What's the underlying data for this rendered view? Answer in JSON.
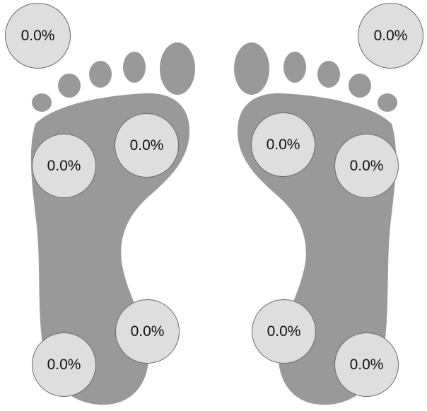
{
  "colors": {
    "foot_fill": "#999999",
    "sensor_fill": "#dedede",
    "sensor_border": "#6a6a6a",
    "text": "#111111",
    "background": "#ffffff"
  },
  "corner_readouts": {
    "left": "0.0%",
    "right": "0.0%"
  },
  "left_foot": {
    "forefoot_outer": "0.0%",
    "forefoot_inner": "0.0%",
    "heel_inner": "0.0%",
    "heel_outer": "0.0%"
  },
  "right_foot": {
    "forefoot_inner": "0.0%",
    "forefoot_outer": "0.0%",
    "heel_inner": "0.0%",
    "heel_outer": "0.0%"
  }
}
